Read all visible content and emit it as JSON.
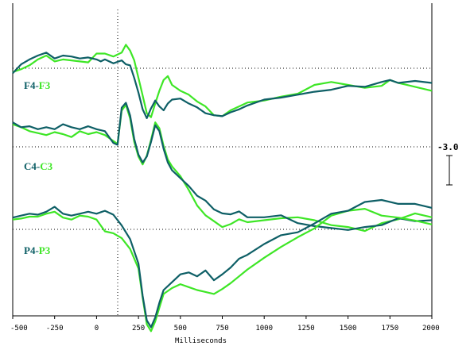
{
  "chart_data": {
    "type": "line",
    "xlabel": "Milliseconds",
    "xlim": [
      -500,
      2000
    ],
    "x_ticks": [
      -500,
      -250,
      0,
      250,
      500,
      750,
      1000,
      1250,
      1500,
      1750,
      2000
    ],
    "x_tick_labels": [
      "-500",
      "-250",
      "0",
      "250",
      "500",
      "750",
      "1000",
      "1250",
      "1500",
      "1750",
      "2000"
    ],
    "scale_bar_label": "-3.0",
    "scale_bar_value": -3.0,
    "grid": "dotted baselines per channel and dotted vertical line at 0 ms",
    "colors": {
      "right": "#0e5f66",
      "left": "#3ee626"
    },
    "channels": [
      {
        "label_right": "F4",
        "label_sep": "-",
        "label_left": "F3",
        "series": [
          {
            "name": "F4",
            "color": "#0e5f66",
            "x": [
              -500,
              -450,
              -400,
              -350,
              -300,
              -250,
              -200,
              -150,
              -100,
              -50,
              0,
              25,
              50,
              100,
              150,
              175,
              200,
              225,
              250,
              275,
              300,
              325,
              350,
              375,
              400,
              425,
              450,
              500,
              550,
              600,
              650,
              700,
              750,
              800,
              850,
              900,
              1000,
              1100,
              1200,
              1300,
              1400,
              1500,
              1600,
              1700,
              1750,
              1800,
              1900,
              2000
            ],
            "y": [
              -0.5,
              0.4,
              0.9,
              1.3,
              1.6,
              1.0,
              1.3,
              1.2,
              1.0,
              1.1,
              0.9,
              0.7,
              0.9,
              0.5,
              0.8,
              0.4,
              0.3,
              -1.0,
              -2.5,
              -4.2,
              -5.1,
              -4.1,
              -3.3,
              -3.9,
              -4.3,
              -3.6,
              -3.2,
              -3.1,
              -3.6,
              -4.0,
              -4.6,
              -4.8,
              -4.9,
              -4.5,
              -4.2,
              -3.8,
              -3.2,
              -3.0,
              -2.7,
              -2.4,
              -2.2,
              -1.8,
              -1.9,
              -1.4,
              -1.2,
              -1.5,
              -1.3,
              -1.5
            ]
          },
          {
            "name": "F3",
            "color": "#3ee626",
            "x": [
              -500,
              -450,
              -400,
              -350,
              -300,
              -250,
              -200,
              -150,
              -100,
              -50,
              0,
              50,
              100,
              150,
              175,
              200,
              225,
              250,
              275,
              300,
              325,
              350,
              375,
              400,
              425,
              450,
              500,
              550,
              600,
              650,
              700,
              750,
              800,
              850,
              900,
              1000,
              1100,
              1200,
              1300,
              1400,
              1500,
              1600,
              1700,
              1750,
              1800,
              1900,
              2000
            ],
            "y": [
              -0.4,
              -0.1,
              0.3,
              0.9,
              1.3,
              0.7,
              0.9,
              0.8,
              0.7,
              0.6,
              1.5,
              1.5,
              1.2,
              1.6,
              2.4,
              1.8,
              0.8,
              -1.0,
              -2.8,
              -4.6,
              -5.0,
              -3.6,
              -2.3,
              -1.2,
              -0.8,
              -1.7,
              -2.3,
              -2.7,
              -3.4,
              -3.9,
              -4.8,
              -4.9,
              -4.3,
              -3.9,
              -3.5,
              -3.3,
              -2.9,
              -2.6,
              -1.7,
              -1.4,
              -1.7,
              -2.0,
              -1.8,
              -1.2,
              -1.5,
              -1.9,
              -2.3
            ]
          }
        ]
      },
      {
        "label_right": "C4",
        "label_sep": "-",
        "label_left": "C3",
        "series": [
          {
            "name": "C4",
            "color": "#0e5f66",
            "x": [
              -500,
              -450,
              -400,
              -350,
              -300,
              -250,
              -200,
              -150,
              -100,
              -50,
              0,
              50,
              100,
              125,
              150,
              175,
              200,
              225,
              250,
              275,
              300,
              325,
              350,
              375,
              400,
              425,
              450,
              500,
              550,
              600,
              650,
              700,
              750,
              800,
              850,
              900,
              1000,
              1100,
              1200,
              1300,
              1400,
              1500,
              1600,
              1700,
              1800,
              1900,
              2000
            ],
            "y": [
              2.5,
              2.0,
              2.1,
              1.8,
              2.0,
              1.8,
              2.3,
              2.0,
              1.8,
              2.1,
              1.8,
              1.6,
              0.4,
              0.2,
              4.0,
              4.5,
              3.2,
              0.8,
              -0.8,
              -1.6,
              -1.0,
              0.5,
              2.2,
              1.6,
              -0.2,
              -1.6,
              -2.4,
              -3.2,
              -4.0,
              -5.0,
              -5.5,
              -6.4,
              -6.8,
              -6.9,
              -6.6,
              -7.2,
              -7.2,
              -7.0,
              -7.8,
              -8.1,
              -8.3,
              -8.5,
              -8.2,
              -8.0,
              -7.3,
              -7.6,
              -7.5
            ]
          },
          {
            "name": "C3",
            "color": "#3ee626",
            "x": [
              -500,
              -450,
              -400,
              -350,
              -300,
              -250,
              -200,
              -150,
              -100,
              -50,
              0,
              50,
              100,
              125,
              150,
              175,
              200,
              225,
              250,
              275,
              300,
              325,
              350,
              375,
              400,
              425,
              450,
              500,
              550,
              600,
              650,
              700,
              750,
              800,
              850,
              900,
              1000,
              1100,
              1200,
              1300,
              1400,
              1500,
              1600,
              1700,
              1800,
              1900,
              2000
            ],
            "y": [
              2.3,
              2.0,
              1.6,
              1.4,
              1.2,
              1.5,
              1.3,
              1.0,
              1.6,
              1.3,
              1.5,
              1.2,
              0.6,
              0.3,
              3.7,
              4.3,
              2.9,
              0.5,
              -1.0,
              -1.8,
              -0.9,
              0.7,
              2.5,
              1.9,
              0.1,
              -1.3,
              -2.0,
              -3.0,
              -4.4,
              -6.0,
              -7.0,
              -7.6,
              -8.2,
              -7.9,
              -7.4,
              -7.7,
              -7.5,
              -7.3,
              -7.2,
              -7.5,
              -8.0,
              -8.2,
              -8.6,
              -7.8,
              -7.4,
              -6.8,
              -7.2
            ]
          }
        ]
      },
      {
        "label_right": "P4",
        "label_sep": "-",
        "label_left": "P3",
        "series": [
          {
            "name": "P4",
            "color": "#0e5f66",
            "x": [
              -500,
              -450,
              -400,
              -350,
              -300,
              -250,
              -200,
              -150,
              -100,
              -50,
              0,
              50,
              100,
              150,
              200,
              250,
              275,
              300,
              325,
              350,
              375,
              400,
              450,
              500,
              550,
              600,
              650,
              700,
              750,
              800,
              850,
              900,
              1000,
              1100,
              1200,
              1300,
              1400,
              1500,
              1600,
              1700,
              1800,
              1900,
              2000
            ],
            "y": [
              1.2,
              1.4,
              1.6,
              1.5,
              1.8,
              2.3,
              1.6,
              1.4,
              1.6,
              1.8,
              1.6,
              1.9,
              1.5,
              0.4,
              -1.0,
              -3.5,
              -6.8,
              -9.3,
              -10.0,
              -9.0,
              -7.5,
              -6.2,
              -5.4,
              -4.6,
              -4.4,
              -4.8,
              -4.2,
              -5.2,
              -4.6,
              -3.9,
              -3.0,
              -2.6,
              -1.5,
              -0.6,
              -0.3,
              0.6,
              1.6,
              1.9,
              2.8,
              3.0,
              2.6,
              2.6,
              2.2
            ]
          },
          {
            "name": "P3",
            "color": "#3ee626",
            "x": [
              -500,
              -450,
              -400,
              -350,
              -300,
              -250,
              -200,
              -150,
              -100,
              -50,
              0,
              50,
              100,
              150,
              200,
              250,
              275,
              300,
              325,
              350,
              375,
              400,
              450,
              500,
              550,
              600,
              650,
              700,
              750,
              800,
              850,
              900,
              1000,
              1100,
              1200,
              1300,
              1400,
              1500,
              1600,
              1700,
              1800,
              1900,
              2000
            ],
            "y": [
              1.0,
              1.1,
              1.3,
              1.3,
              1.6,
              1.8,
              1.2,
              1.0,
              1.4,
              1.3,
              1.0,
              -0.2,
              -0.4,
              -0.9,
              -2.0,
              -4.0,
              -7.0,
              -9.7,
              -10.4,
              -9.4,
              -8.0,
              -6.6,
              -6.0,
              -5.6,
              -5.9,
              -6.2,
              -6.4,
              -6.6,
              -6.1,
              -5.5,
              -4.8,
              -4.1,
              -2.9,
              -1.8,
              -0.8,
              0.1,
              1.4,
              1.9,
              2.1,
              1.4,
              1.2,
              0.9,
              0.5
            ]
          }
        ]
      }
    ]
  }
}
